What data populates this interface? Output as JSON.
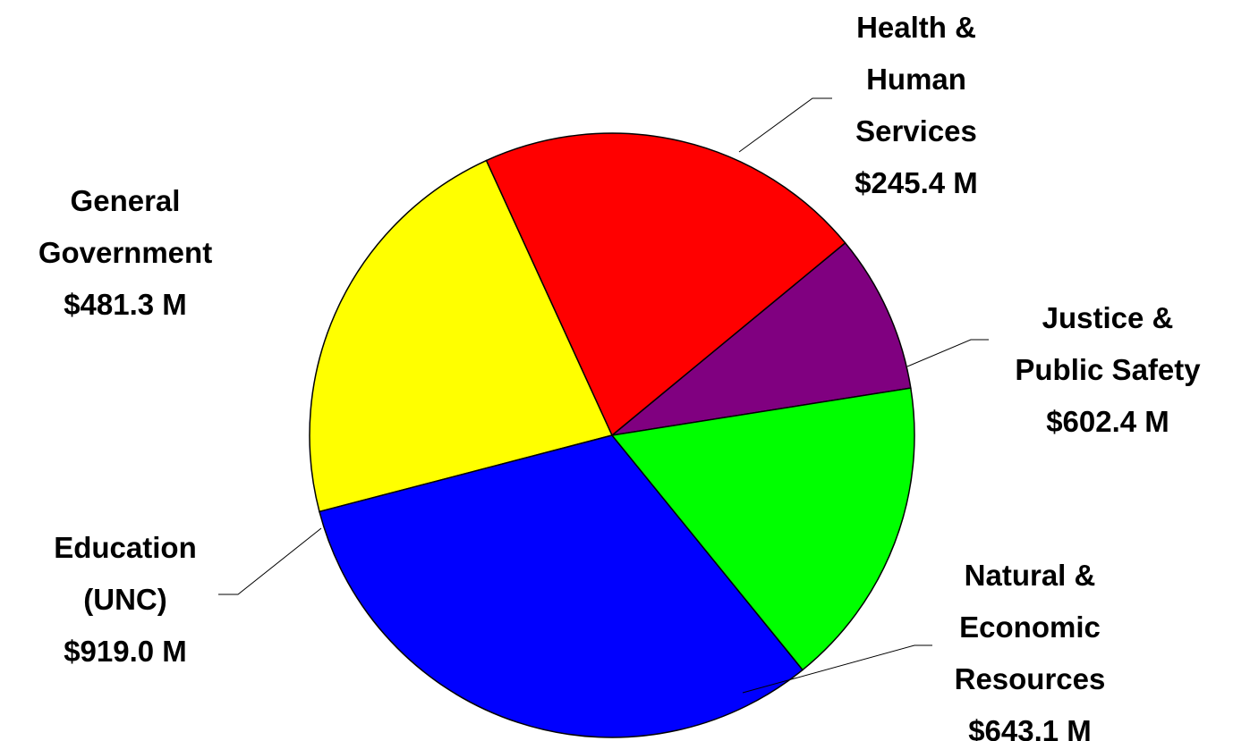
{
  "chart_data": {
    "type": "pie",
    "title": "",
    "slices": [
      {
        "category": [
          "Health &",
          "Human",
          "Services"
        ],
        "value": 245.4,
        "value_label": "$245.4 M",
        "color": "#800080"
      },
      {
        "category": [
          "Justice &",
          "Public Safety"
        ],
        "value": 602.4,
        "value_label": "$602.4 M",
        "color": "#ff0000"
      },
      {
        "category": [
          "Natural &",
          "Economic",
          "Resources"
        ],
        "value": 643.1,
        "value_label": "$643.1 M",
        "color": "#ffff00"
      },
      {
        "category": [
          "Education",
          "(UNC)"
        ],
        "value": 919.0,
        "value_label": "$919.0 M",
        "color": "#0000ff"
      },
      {
        "category": [
          "General",
          "Government"
        ],
        "value": 481.3,
        "value_label": "$481.3 M",
        "color": "#00ff00"
      }
    ]
  }
}
